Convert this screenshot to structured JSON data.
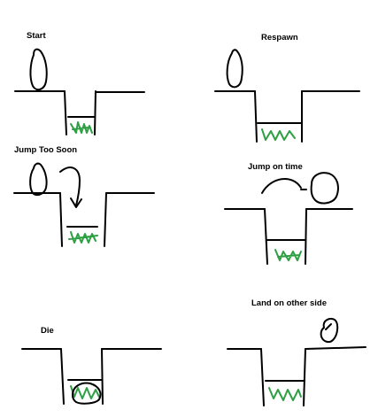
{
  "panels": [
    {
      "id": "start",
      "title": "Start"
    },
    {
      "id": "respawn",
      "title": "Respawn"
    },
    {
      "id": "jump-too-soon",
      "title": "Jump Too Soon"
    },
    {
      "id": "jump-on-time",
      "title": "Jump on time"
    },
    {
      "id": "die",
      "title": "Die"
    },
    {
      "id": "land-other-side",
      "title": "Land on other side"
    }
  ],
  "colors": {
    "ink": "#000000",
    "grass": "#2ea043",
    "background": "#ffffff"
  }
}
